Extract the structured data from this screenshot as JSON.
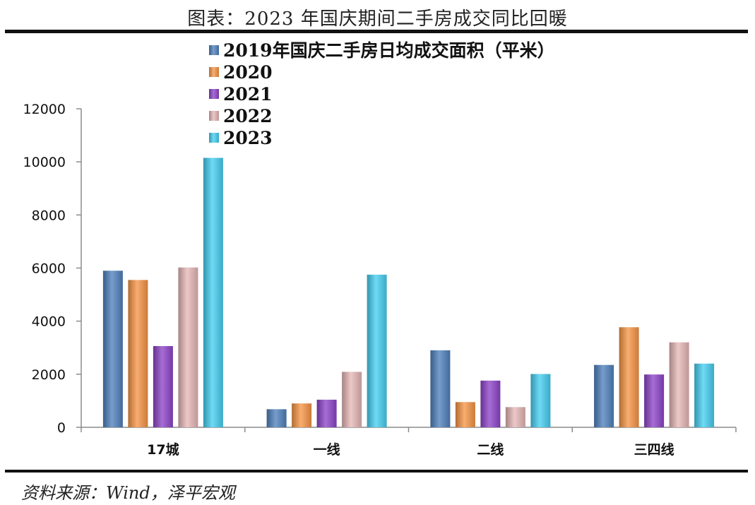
{
  "header": {
    "title": "图表：2023 年国庆期间二手房成交同比回暖"
  },
  "footer": {
    "source": "资料来源：Wind，泽平宏观"
  },
  "chart_data": {
    "type": "bar",
    "title": "",
    "xlabel": "",
    "ylabel": "",
    "categories": [
      "17城",
      "一线",
      "二线",
      "三四线"
    ],
    "ylim": [
      0,
      12000
    ],
    "yticks": [
      0,
      2000,
      4000,
      6000,
      8000,
      10000,
      12000
    ],
    "grid": false,
    "legend_position": "top-left",
    "series": [
      {
        "name": "2019年国庆二手房日均成交面积（平米）",
        "color": "#4f81bd",
        "values": [
          5900,
          680,
          2900,
          2350
        ]
      },
      {
        "name": "2020",
        "color": "#f79646",
        "values": [
          5550,
          900,
          950,
          3770
        ]
      },
      {
        "name": "2021",
        "color": "#8e44c9",
        "values": [
          3060,
          1040,
          1760,
          1990
        ]
      },
      {
        "name": "2022",
        "color": "#e6b8b7",
        "values": [
          6020,
          2090,
          760,
          3200
        ]
      },
      {
        "name": "2023",
        "color": "#47cff2",
        "values": [
          10150,
          5750,
          2010,
          2400
        ]
      }
    ]
  }
}
